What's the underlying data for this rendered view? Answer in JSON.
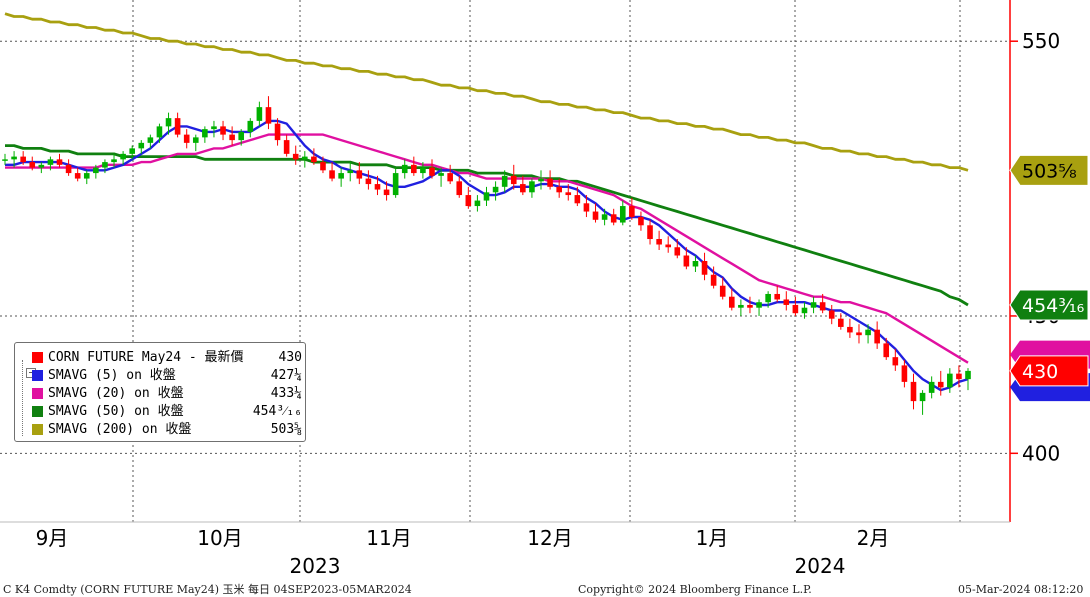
{
  "chart_data": {
    "type": "candlestick",
    "y_ticks": [
      "550",
      "450",
      "400"
    ],
    "ylim": [
      375,
      565
    ],
    "months": [
      "9月",
      "10月",
      "11月",
      "12月",
      "1月",
      "2月"
    ],
    "years": [
      "2023",
      "2024"
    ],
    "grid": true,
    "candles": [
      [
        507,
        509,
        505,
        507
      ],
      [
        507,
        510,
        504,
        508
      ],
      [
        508,
        510,
        505,
        506
      ],
      [
        506,
        508,
        503,
        504
      ],
      [
        504,
        506,
        502,
        505
      ],
      [
        505,
        508,
        503,
        507
      ],
      [
        507,
        509,
        504,
        505
      ],
      [
        505,
        507,
        501,
        502
      ],
      [
        502,
        504,
        499,
        500
      ],
      [
        500,
        503,
        498,
        502
      ],
      [
        502,
        505,
        500,
        504
      ],
      [
        504,
        507,
        502,
        506
      ],
      [
        506,
        509,
        504,
        507
      ],
      [
        507,
        510,
        505,
        509
      ],
      [
        509,
        512,
        507,
        511
      ],
      [
        511,
        514,
        509,
        513
      ],
      [
        513,
        516,
        511,
        515
      ],
      [
        515,
        520,
        513,
        519
      ],
      [
        519,
        524,
        516,
        522
      ],
      [
        522,
        524,
        515,
        516
      ],
      [
        516,
        518,
        511,
        513
      ],
      [
        513,
        516,
        510,
        515
      ],
      [
        515,
        519,
        513,
        518
      ],
      [
        518,
        521,
        515,
        519
      ],
      [
        519,
        521,
        514,
        516
      ],
      [
        516,
        519,
        512,
        514
      ],
      [
        514,
        518,
        512,
        517
      ],
      [
        517,
        522,
        515,
        521
      ],
      [
        521,
        528,
        519,
        526
      ],
      [
        526,
        530,
        518,
        520
      ],
      [
        520,
        522,
        512,
        514
      ],
      [
        514,
        516,
        508,
        509
      ],
      [
        509,
        512,
        505,
        507
      ],
      [
        507,
        510,
        504,
        508
      ],
      [
        508,
        511,
        505,
        506
      ],
      [
        506,
        508,
        502,
        503
      ],
      [
        503,
        506,
        499,
        500
      ],
      [
        500,
        504,
        497,
        502
      ],
      [
        502,
        506,
        499,
        503
      ],
      [
        503,
        506,
        498,
        500
      ],
      [
        500,
        503,
        496,
        498
      ],
      [
        498,
        501,
        494,
        496
      ],
      [
        496,
        499,
        492,
        494
      ],
      [
        494,
        504,
        493,
        502
      ],
      [
        502,
        507,
        500,
        505
      ],
      [
        505,
        508,
        501,
        502
      ],
      [
        502,
        506,
        500,
        504
      ],
      [
        504,
        507,
        500,
        501
      ],
      [
        501,
        504,
        497,
        502
      ],
      [
        502,
        505,
        498,
        499
      ],
      [
        499,
        501,
        493,
        494
      ],
      [
        494,
        497,
        489,
        490
      ],
      [
        490,
        494,
        488,
        492
      ],
      [
        492,
        497,
        490,
        495
      ],
      [
        495,
        499,
        492,
        497
      ],
      [
        497,
        503,
        495,
        501
      ],
      [
        501,
        505,
        496,
        498
      ],
      [
        498,
        501,
        494,
        495
      ],
      [
        495,
        500,
        493,
        499
      ],
      [
        499,
        503,
        496,
        500
      ],
      [
        500,
        503,
        496,
        497
      ],
      [
        497,
        500,
        493,
        495
      ],
      [
        495,
        498,
        492,
        494
      ],
      [
        494,
        497,
        490,
        491
      ],
      [
        491,
        494,
        486,
        488
      ],
      [
        488,
        491,
        484,
        485
      ],
      [
        485,
        489,
        483,
        487
      ],
      [
        487,
        489,
        483,
        484
      ],
      [
        484,
        492,
        483,
        490
      ],
      [
        490,
        493,
        485,
        486
      ],
      [
        486,
        488,
        481,
        483
      ],
      [
        483,
        485,
        476,
        478
      ],
      [
        478,
        481,
        474,
        476
      ],
      [
        476,
        479,
        473,
        475
      ],
      [
        475,
        478,
        471,
        472
      ],
      [
        472,
        475,
        467,
        468
      ],
      [
        468,
        472,
        466,
        470
      ],
      [
        470,
        473,
        463,
        465
      ],
      [
        465,
        468,
        460,
        461
      ],
      [
        461,
        464,
        456,
        457
      ],
      [
        457,
        460,
        452,
        453
      ],
      [
        453,
        456,
        450,
        454
      ],
      [
        454,
        457,
        451,
        453
      ],
      [
        453,
        456,
        450,
        455
      ],
      [
        455,
        459,
        453,
        458
      ],
      [
        458,
        461,
        455,
        456
      ],
      [
        456,
        459,
        452,
        454
      ],
      [
        454,
        457,
        450,
        451
      ],
      [
        451,
        455,
        449,
        453
      ],
      [
        453,
        457,
        451,
        455
      ],
      [
        455,
        458,
        451,
        452
      ],
      [
        452,
        454,
        447,
        449
      ],
      [
        449,
        451,
        445,
        446
      ],
      [
        446,
        449,
        442,
        444
      ],
      [
        444,
        447,
        440,
        443
      ],
      [
        443,
        447,
        440,
        445
      ],
      [
        445,
        448,
        438,
        440
      ],
      [
        440,
        442,
        434,
        435
      ],
      [
        435,
        438,
        430,
        432
      ],
      [
        432,
        434,
        424,
        426
      ],
      [
        426,
        429,
        416,
        419
      ],
      [
        419,
        423,
        414,
        422
      ],
      [
        422,
        428,
        420,
        426
      ],
      [
        426,
        430,
        421,
        424
      ],
      [
        424,
        431,
        422,
        429
      ],
      [
        429,
        432,
        424,
        427
      ],
      [
        427,
        431,
        423,
        430
      ]
    ],
    "series": [
      {
        "name": "SMAVG (5)",
        "values": [
          505,
          505,
          506,
          506,
          506,
          506,
          506,
          505,
          504,
          503,
          503,
          503,
          504,
          505,
          507,
          509,
          511,
          514,
          517,
          519,
          519,
          518,
          517,
          517,
          518,
          517,
          517,
          517,
          519,
          521,
          521,
          520,
          516,
          512,
          509,
          507,
          506,
          504,
          503,
          502,
          501,
          500,
          498,
          497,
          497,
          498,
          499,
          501,
          503,
          503,
          501,
          498,
          496,
          494,
          494,
          495,
          497,
          497,
          497,
          498,
          498,
          497,
          497,
          496,
          493,
          491,
          488,
          486,
          485,
          486,
          486,
          485,
          483,
          480,
          477,
          474,
          472,
          469,
          466,
          464,
          460,
          457,
          455,
          454,
          454,
          455,
          455,
          455,
          455,
          454,
          453,
          452,
          452,
          450,
          448,
          446,
          444,
          441,
          438,
          434,
          430,
          427,
          425,
          423,
          424,
          426,
          427
        ]
      },
      {
        "name": "SMAVG (20)",
        "values": [
          504,
          504,
          504,
          504,
          504,
          504,
          504,
          504,
          504,
          504,
          504,
          505,
          505,
          505,
          505,
          506,
          506,
          507,
          508,
          509,
          509,
          509,
          510,
          511,
          511,
          512,
          513,
          514,
          515,
          516,
          516,
          516,
          516,
          516,
          516,
          516,
          515,
          514,
          513,
          512,
          511,
          510,
          509,
          508,
          507,
          506,
          505,
          505,
          504,
          503,
          502,
          502,
          501,
          500,
          500,
          500,
          500,
          500,
          500,
          500,
          499,
          499,
          499,
          498,
          497,
          496,
          495,
          494,
          492,
          490,
          489,
          487,
          485,
          483,
          481,
          479,
          477,
          475,
          473,
          471,
          469,
          467,
          465,
          463,
          462,
          461,
          460,
          459,
          458,
          457,
          457,
          456,
          455,
          455,
          454,
          453,
          452,
          451,
          449,
          447,
          445,
          443,
          441,
          439,
          437,
          435,
          433
        ]
      },
      {
        "name": "SMAVG (50)",
        "values": [
          512,
          512,
          511,
          511,
          511,
          510,
          510,
          510,
          509,
          509,
          509,
          509,
          509,
          508,
          508,
          508,
          508,
          508,
          508,
          508,
          508,
          508,
          507,
          507,
          507,
          507,
          507,
          507,
          507,
          507,
          507,
          507,
          507,
          507,
          506,
          506,
          506,
          506,
          506,
          505,
          505,
          505,
          505,
          504,
          504,
          504,
          504,
          504,
          503,
          503,
          503,
          503,
          502,
          502,
          502,
          502,
          501,
          501,
          501,
          500,
          500,
          500,
          499,
          499,
          498,
          497,
          496,
          495,
          494,
          493,
          492,
          491,
          490,
          489,
          488,
          487,
          486,
          485,
          484,
          483,
          482,
          481,
          480,
          479,
          478,
          477,
          476,
          475,
          474,
          473,
          472,
          471,
          470,
          469,
          468,
          467,
          466,
          465,
          464,
          463,
          462,
          461,
          460,
          459,
          457,
          456,
          454
        ]
      },
      {
        "name": "SMAVG (200)",
        "values": [
          560,
          559,
          559,
          558,
          558,
          557,
          557,
          556,
          556,
          555,
          555,
          554,
          554,
          553,
          553,
          552,
          551,
          551,
          550,
          550,
          549,
          549,
          548,
          548,
          547,
          547,
          546,
          546,
          545,
          545,
          544,
          543,
          543,
          542,
          542,
          541,
          541,
          540,
          540,
          539,
          539,
          538,
          538,
          537,
          537,
          536,
          536,
          535,
          534,
          534,
          533,
          533,
          532,
          532,
          531,
          531,
          530,
          530,
          529,
          528,
          528,
          527,
          527,
          526,
          526,
          525,
          525,
          524,
          524,
          523,
          522,
          522,
          521,
          521,
          520,
          520,
          519,
          519,
          518,
          518,
          517,
          516,
          516,
          515,
          515,
          514,
          514,
          513,
          513,
          512,
          511,
          511,
          510,
          510,
          509,
          509,
          508,
          508,
          507,
          507,
          506,
          506,
          505,
          505,
          504,
          504,
          503
        ]
      }
    ],
    "title": "",
    "xlabel": "",
    "ylabel": ""
  },
  "colors": {
    "price": "#ff0000",
    "up": "#00b000",
    "sma5": "#2020e0",
    "sma20": "#e010a0",
    "sma50": "#108010",
    "sma200": "#a8a010",
    "axis": "#ff0000",
    "grid": "#555555"
  },
  "value_tags": [
    {
      "text": "503⅝",
      "series": "sma200"
    },
    {
      "text": "454³⁄₁₆",
      "series": "sma50"
    },
    {
      "text": "430",
      "series": "price"
    }
  ],
  "legend": {
    "items": [
      {
        "label": "CORN FUTURE May24 - 最新價",
        "value": "430",
        "color_key": "price"
      },
      {
        "label": "SMAVG (5)  on 收盤",
        "value": "427¼",
        "color_key": "sma5"
      },
      {
        "label": "SMAVG (20)  on 收盤",
        "value": "433¼",
        "color_key": "sma20"
      },
      {
        "label": "SMAVG (50)  on 收盤",
        "value": "454³⁄₁₆",
        "color_key": "sma50"
      },
      {
        "label": "SMAVG (200)  on 收盤",
        "value": "503⅝",
        "color_key": "sma200"
      }
    ]
  },
  "footer": {
    "left": "C K4 Comdty (CORN FUTURE        May24) 玉米   每日 04SEP2023-05MAR2024",
    "center": "Copyright© 2024 Bloomberg Finance L.P.",
    "right": "05-Mar-2024 08:12:20"
  }
}
